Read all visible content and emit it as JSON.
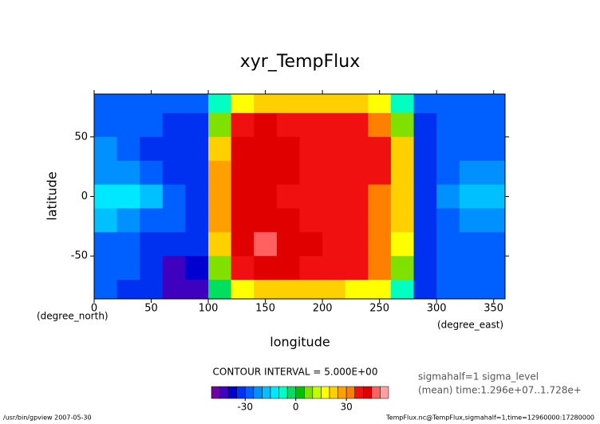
{
  "chart_data": {
    "type": "heatmap",
    "title": "xyr_TempFlux",
    "x_label": "longitude",
    "y_label": "latitude",
    "x_unit": "(degree_east)",
    "y_unit": "(degree_north)",
    "x": [
      10,
      30,
      50,
      70,
      90,
      110,
      130,
      150,
      170,
      190,
      210,
      230,
      250,
      270,
      290,
      310,
      330,
      350
    ],
    "y": [
      80,
      60,
      40,
      20,
      0,
      -20,
      -40,
      -60,
      -80
    ],
    "values": [
      [
        -28,
        -28,
        -30,
        -30,
        -30,
        -10,
        15,
        20,
        20,
        20,
        20,
        20,
        15,
        -10,
        -30,
        -28,
        -28,
        -28
      ],
      [
        -28,
        -28,
        -28,
        -32,
        -32,
        5,
        35,
        42,
        38,
        37,
        37,
        37,
        30,
        5,
        -32,
        -28,
        -28,
        -28
      ],
      [
        -25,
        -28,
        -32,
        -32,
        -33,
        20,
        40,
        42,
        40,
        37,
        37,
        36,
        35,
        20,
        -33,
        -30,
        -28,
        -28
      ],
      [
        -22,
        -25,
        -30,
        -32,
        -33,
        25,
        40,
        42,
        42,
        38,
        37,
        37,
        35,
        22,
        -33,
        -30,
        -25,
        -25
      ],
      [
        -12,
        -12,
        -20,
        -30,
        -33,
        25,
        40,
        40,
        38,
        37,
        37,
        37,
        33,
        22,
        -33,
        -25,
        -20,
        -18
      ],
      [
        -20,
        -22,
        -28,
        -30,
        -33,
        25,
        40,
        42,
        40,
        38,
        37,
        35,
        33,
        20,
        -33,
        -28,
        -25,
        -22
      ],
      [
        -28,
        -30,
        -32,
        -33,
        -35,
        20,
        42,
        45,
        42,
        40,
        37,
        36,
        33,
        18,
        -33,
        -30,
        -28,
        -28
      ],
      [
        -28,
        -30,
        -35,
        -42,
        -40,
        5,
        35,
        42,
        40,
        37,
        36,
        35,
        30,
        5,
        -32,
        -30,
        -28,
        -28
      ],
      [
        -30,
        -32,
        -35,
        -45,
        -42,
        -5,
        15,
        20,
        20,
        20,
        20,
        18,
        15,
        -8,
        -32,
        -30,
        -30,
        -30
      ]
    ],
    "xlim": [
      0,
      360
    ],
    "ylim": [
      -86,
      86
    ],
    "xticks": [
      0,
      50,
      100,
      150,
      200,
      250,
      300,
      350
    ],
    "yticks": [
      -50,
      0,
      50
    ],
    "colorbar": {
      "title": "CONTOUR INTERVAL = 5.000E+00",
      "levels": [
        -50,
        -45,
        -40,
        -35,
        -30,
        -25,
        -20,
        -15,
        -10,
        -5,
        0,
        5,
        10,
        15,
        20,
        25,
        30,
        35,
        40,
        45,
        50,
        55
      ],
      "colors": [
        "#7000a0",
        "#4000c0",
        "#0000d0",
        "#0030f0",
        "#0060ff",
        "#0090ff",
        "#00c0ff",
        "#00e8ff",
        "#00ffc0",
        "#00e060",
        "#00c000",
        "#80e000",
        "#c0ff00",
        "#ffff00",
        "#ffd000",
        "#ffa000",
        "#ff8000",
        "#f01010",
        "#e00000",
        "#ff6060",
        "#ffa0a0"
      ],
      "ticks": [
        -30,
        0,
        30
      ]
    },
    "annotations": [
      "sigmahalf=1 sigma_level",
      "(mean) time:1.296e+07..1.728e+"
    ],
    "footer_left": "/usr/bin/gpview  2007-05-30",
    "footer_right": "TempFlux.nc@TempFlux,sigmahalf=1,time=12960000:17280000"
  }
}
